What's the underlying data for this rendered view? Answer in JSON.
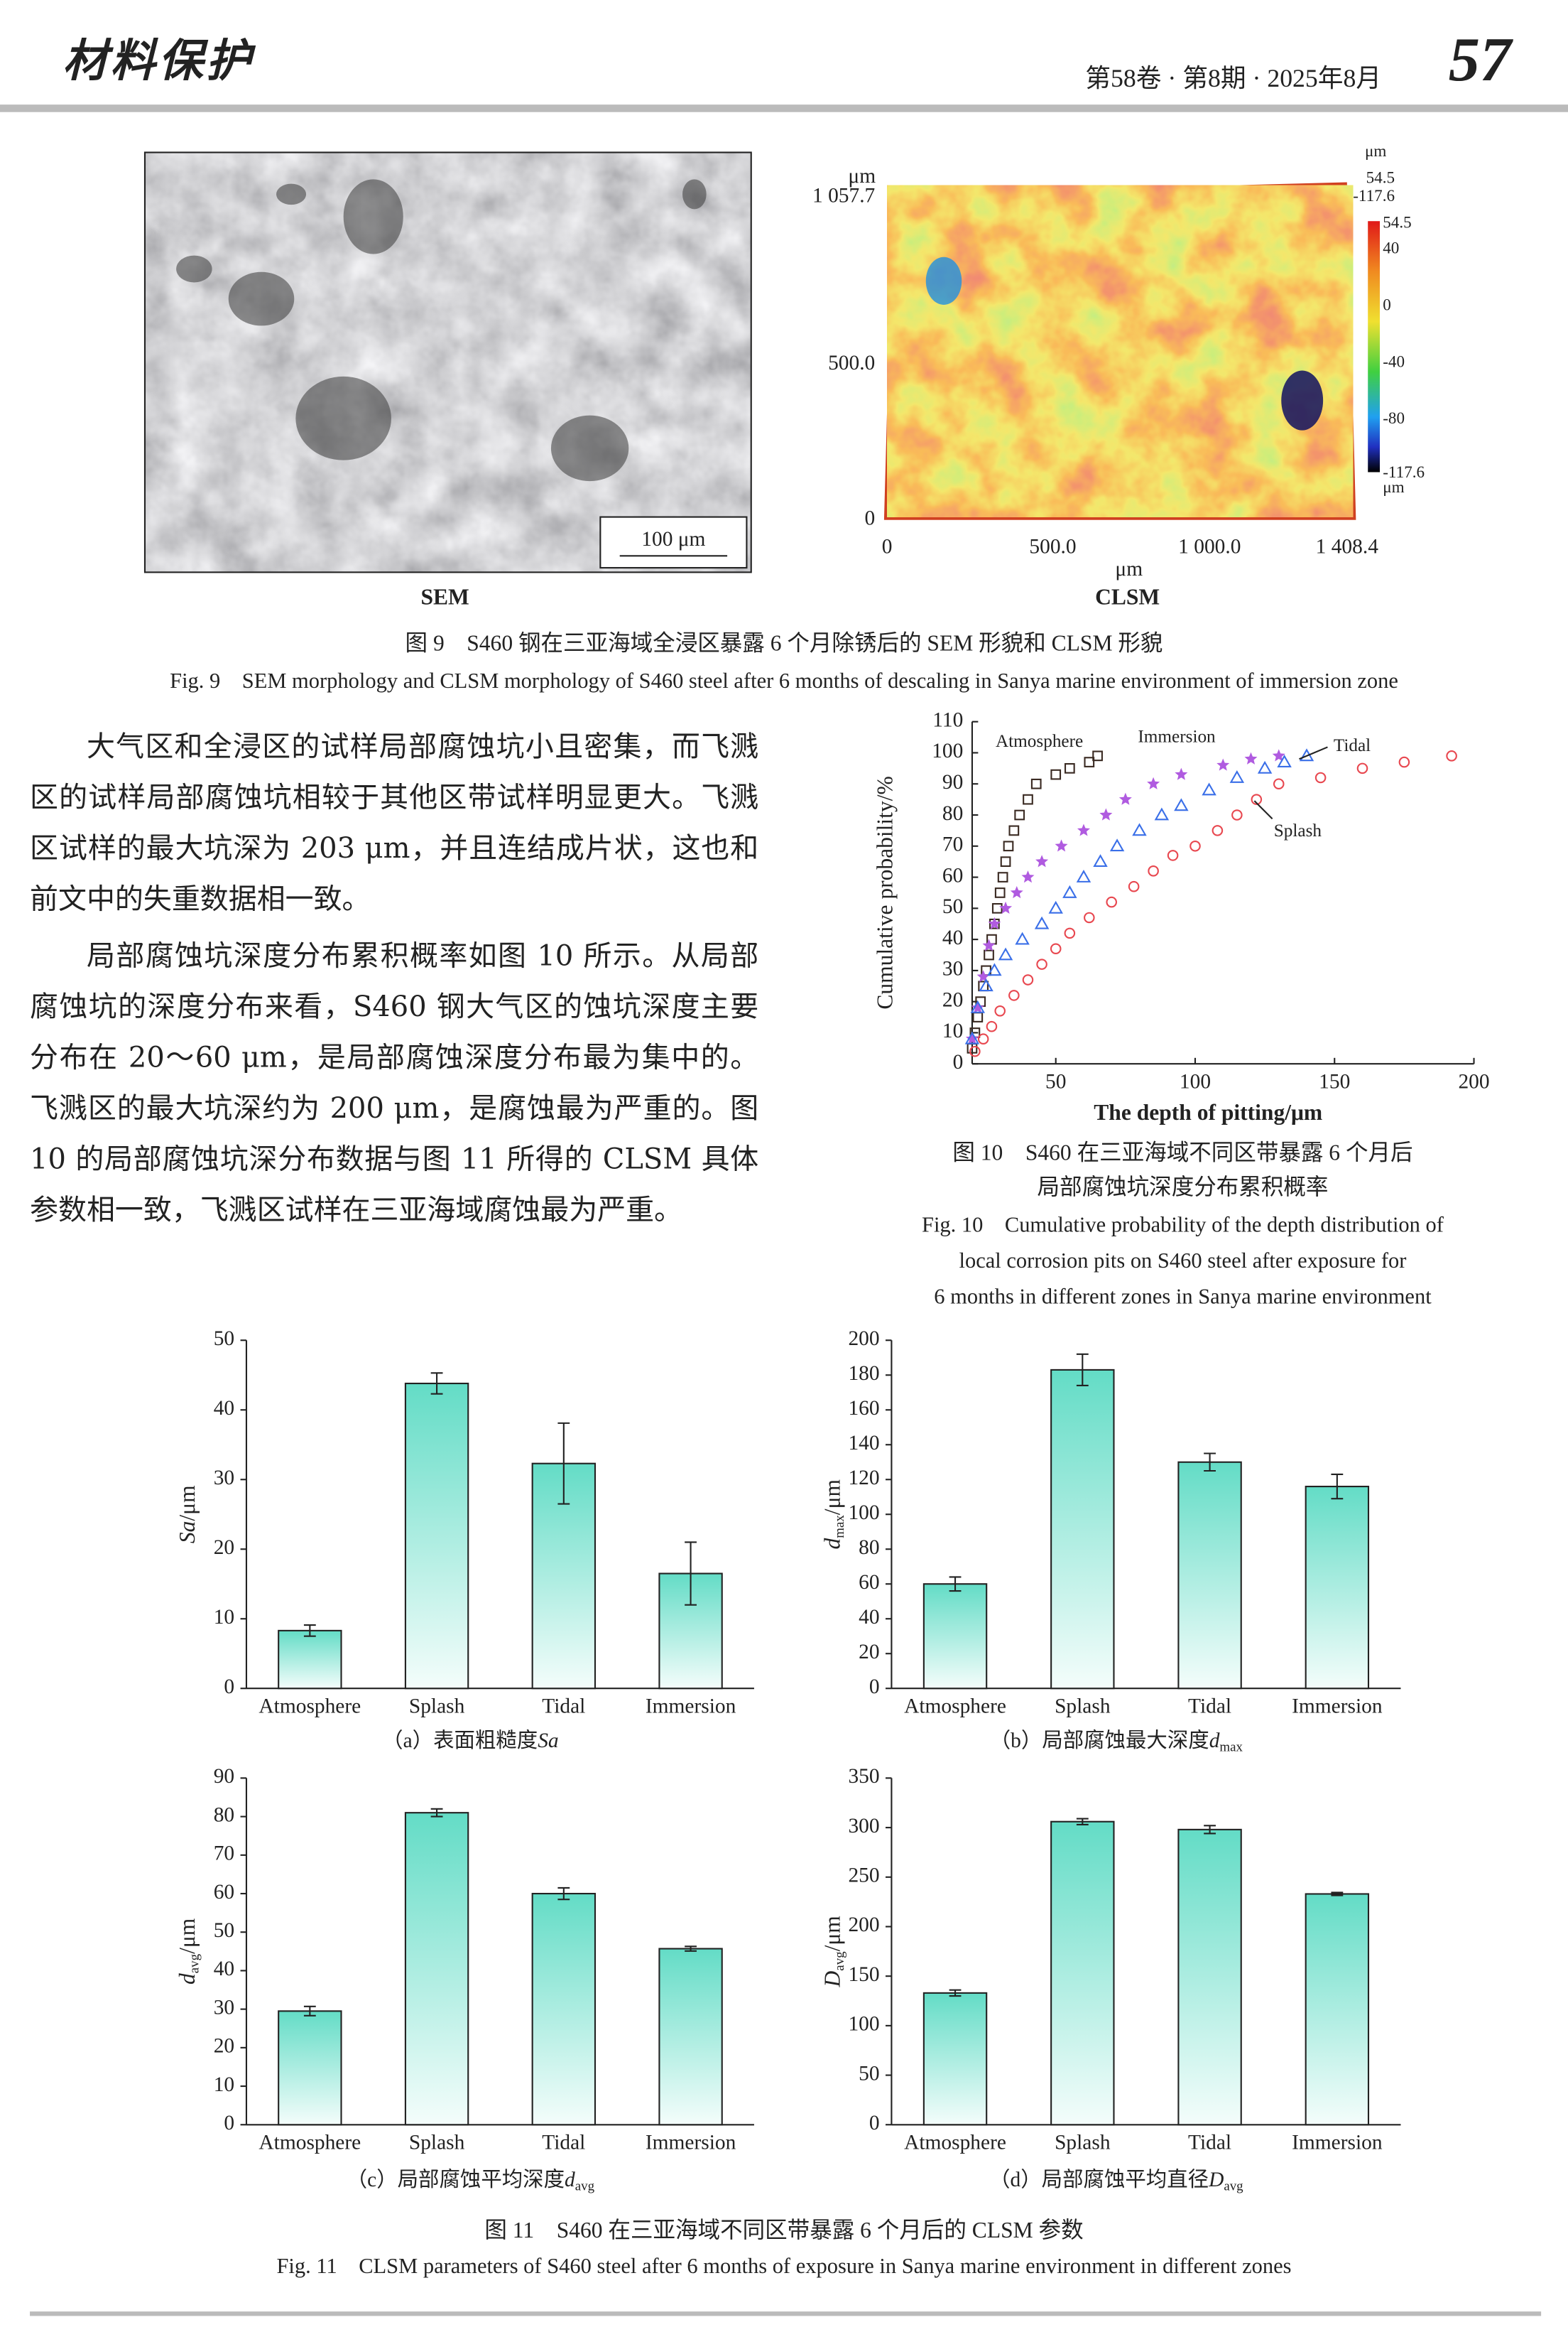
{
  "header": {
    "journal": "材料保护",
    "issue": "第58卷 · 第8期 · 2025年8月",
    "page": "57"
  },
  "fig9": {
    "sem_label": "SEM",
    "clsm_label": "CLSM",
    "scale_bar": "100 μm",
    "clsm_unit": "μm",
    "clsm_yticks": [
      "1 057.7",
      "500.0",
      "0"
    ],
    "clsm_xticks": [
      "0",
      "500.0",
      "1 000.0",
      "1 408.4"
    ],
    "clsm_ztop": [
      "54.5",
      "-117.6"
    ],
    "colorbar_ticks": [
      "54.5",
      "40",
      "0",
      "-40",
      "-80",
      "-117.6"
    ],
    "caption_cn": "图 9　S460 钢在三亚海域全浸区暴露 6 个月除锈后的 SEM 形貌和 CLSM 形貌",
    "caption_en": "Fig. 9　SEM morphology and CLSM morphology of S460 steel after 6 months of descaling in Sanya marine environment of immersion zone"
  },
  "text": {
    "paragraphs": [
      "大气区和全浸区的试样局部腐蚀坑小且密集，而飞溅区的试样局部腐蚀坑相较于其他区带试样明显更大。飞溅区试样的最大坑深为 203 μm，并且连结成片状，这也和前文中的失重数据相一致。",
      "局部腐蚀坑深度分布累积概率如图 10 所示。从局部腐蚀坑的深度分布来看，S460 钢大气区的蚀坑深度主要分布在 20～60 μm，是局部腐蚀深度分布最为集中的。飞溅区的最大坑深约为 200 μm，是腐蚀最为严重的。图 10 的局部腐蚀坑深分布数据与图 11 所得的 CLSM 具体参数相一致，飞溅区试样在三亚海域腐蚀最为严重。"
    ]
  },
  "fig10": {
    "type": "scatter",
    "x_label": "The depth of pitting/μm",
    "y_label": "Cumulative probability/%",
    "xlim": [
      20,
      200
    ],
    "xticks": [
      50,
      100,
      150,
      200
    ],
    "ylim": [
      0,
      110
    ],
    "yticks": [
      0,
      10,
      20,
      30,
      40,
      50,
      60,
      70,
      80,
      90,
      100,
      110
    ],
    "series": [
      {
        "name": "Atmosphere",
        "color": "#3a2a22",
        "marker": "square",
        "x": [
          20,
          21,
          22,
          23,
          24,
          25,
          26,
          27,
          28,
          29,
          30,
          31,
          32,
          33,
          35,
          37,
          40,
          43,
          50,
          55,
          62,
          65
        ],
        "values": [
          5,
          10,
          15,
          20,
          25,
          30,
          35,
          40,
          45,
          50,
          55,
          60,
          65,
          70,
          75,
          80,
          85,
          90,
          93,
          95,
          97,
          99
        ]
      },
      {
        "name": "Immersion",
        "color": "#b05be0",
        "marker": "star",
        "x": [
          20,
          22,
          24,
          26,
          28,
          32,
          36,
          40,
          45,
          52,
          60,
          68,
          75,
          85,
          95,
          110,
          120,
          130
        ],
        "values": [
          8,
          18,
          28,
          38,
          45,
          50,
          55,
          60,
          65,
          70,
          75,
          80,
          85,
          90,
          93,
          96,
          98,
          99
        ]
      },
      {
        "name": "Tidal",
        "color": "#3a6fe8",
        "marker": "triangle",
        "x": [
          20,
          22,
          25,
          28,
          32,
          38,
          45,
          50,
          55,
          60,
          66,
          72,
          80,
          88,
          95,
          105,
          115,
          125,
          132,
          140
        ],
        "values": [
          8,
          18,
          25,
          30,
          35,
          40,
          45,
          50,
          55,
          60,
          65,
          70,
          75,
          80,
          83,
          88,
          92,
          95,
          97,
          99
        ]
      },
      {
        "name": "Splash",
        "color": "#e8474f",
        "marker": "circle",
        "x": [
          21,
          24,
          27,
          30,
          35,
          40,
          45,
          50,
          55,
          62,
          70,
          78,
          85,
          92,
          100,
          108,
          115,
          122,
          130,
          145,
          160,
          175,
          192
        ],
        "values": [
          4,
          8,
          12,
          17,
          22,
          27,
          32,
          37,
          42,
          47,
          52,
          57,
          62,
          67,
          70,
          75,
          80,
          85,
          90,
          92,
          95,
          97,
          99
        ]
      }
    ],
    "caption_cn": [
      "图 10　S460 在三亚海域不同区带暴露 6 个月后",
      "局部腐蚀坑深度分布累积概率"
    ],
    "caption_en": [
      "Fig. 10　Cumulative probability of the depth distribution of",
      "local corrosion pits on S460 steel after exposure for",
      "6 months in different zones in Sanya marine environment"
    ]
  },
  "fig11": {
    "panels": [
      {
        "type": "bar",
        "categories": [
          "Atmosphere",
          "Splash",
          "Tidal",
          "Immersion"
        ],
        "values": [
          8.3,
          43.8,
          32.3,
          16.5
        ],
        "errors": [
          0.8,
          1.5,
          5.8,
          4.5
        ],
        "ylim": [
          0,
          50
        ],
        "yticks": [
          0,
          10,
          20,
          30,
          40,
          50
        ],
        "y_label": {
          "symbol": "Sa",
          "unit": "/μm"
        },
        "caption": {
          "prefix": "（a）表面粗糙度",
          "symbol": "Sa"
        }
      },
      {
        "type": "bar",
        "categories": [
          "Atmosphere",
          "Splash",
          "Tidal",
          "Immersion"
        ],
        "values": [
          60,
          183,
          130,
          116
        ],
        "errors": [
          4,
          9,
          5,
          7
        ],
        "ylim": [
          0,
          200
        ],
        "yticks": [
          0,
          20,
          40,
          60,
          80,
          100,
          120,
          140,
          160,
          180,
          200
        ],
        "y_label": {
          "symbol": "d",
          "sub": "max",
          "unit": "/μm"
        },
        "caption": {
          "prefix": "（b）局部腐蚀最大深度",
          "symbol": "d",
          "sub": "max"
        }
      },
      {
        "type": "bar",
        "categories": [
          "Atmosphere",
          "Splash",
          "Tidal",
          "Immersion"
        ],
        "values": [
          29.5,
          81,
          60,
          45.7
        ],
        "errors": [
          1.2,
          1,
          1.5,
          0.6
        ],
        "ylim": [
          0,
          90
        ],
        "yticks": [
          0,
          10,
          20,
          30,
          40,
          50,
          60,
          70,
          80,
          90
        ],
        "y_label": {
          "symbol": "d",
          "sub": "avg",
          "unit": "/μm"
        },
        "caption": {
          "prefix": "（c）局部腐蚀平均深度",
          "symbol": "d",
          "sub": "avg"
        }
      },
      {
        "type": "bar",
        "categories": [
          "Atmosphere",
          "Splash",
          "Tidal",
          "Immersion"
        ],
        "values": [
          133,
          306,
          298,
          233
        ],
        "errors": [
          3,
          3,
          4,
          1.5
        ],
        "ylim": [
          0,
          350
        ],
        "yticks": [
          0,
          50,
          100,
          150,
          200,
          250,
          300,
          350
        ],
        "y_label": {
          "symbol": "D",
          "sub": "avg",
          "unit": "/μm"
        },
        "caption": {
          "prefix": "（d）局部腐蚀平均直径",
          "symbol": "D",
          "sub": "avg"
        }
      }
    ],
    "caption_cn": "图 11　S460 在三亚海域不同区带暴露 6 个月后的 CLSM 参数",
    "caption_en": "Fig. 11　CLSM parameters of S460 steel after 6 months of exposure in Sanya marine environment in different zones"
  }
}
